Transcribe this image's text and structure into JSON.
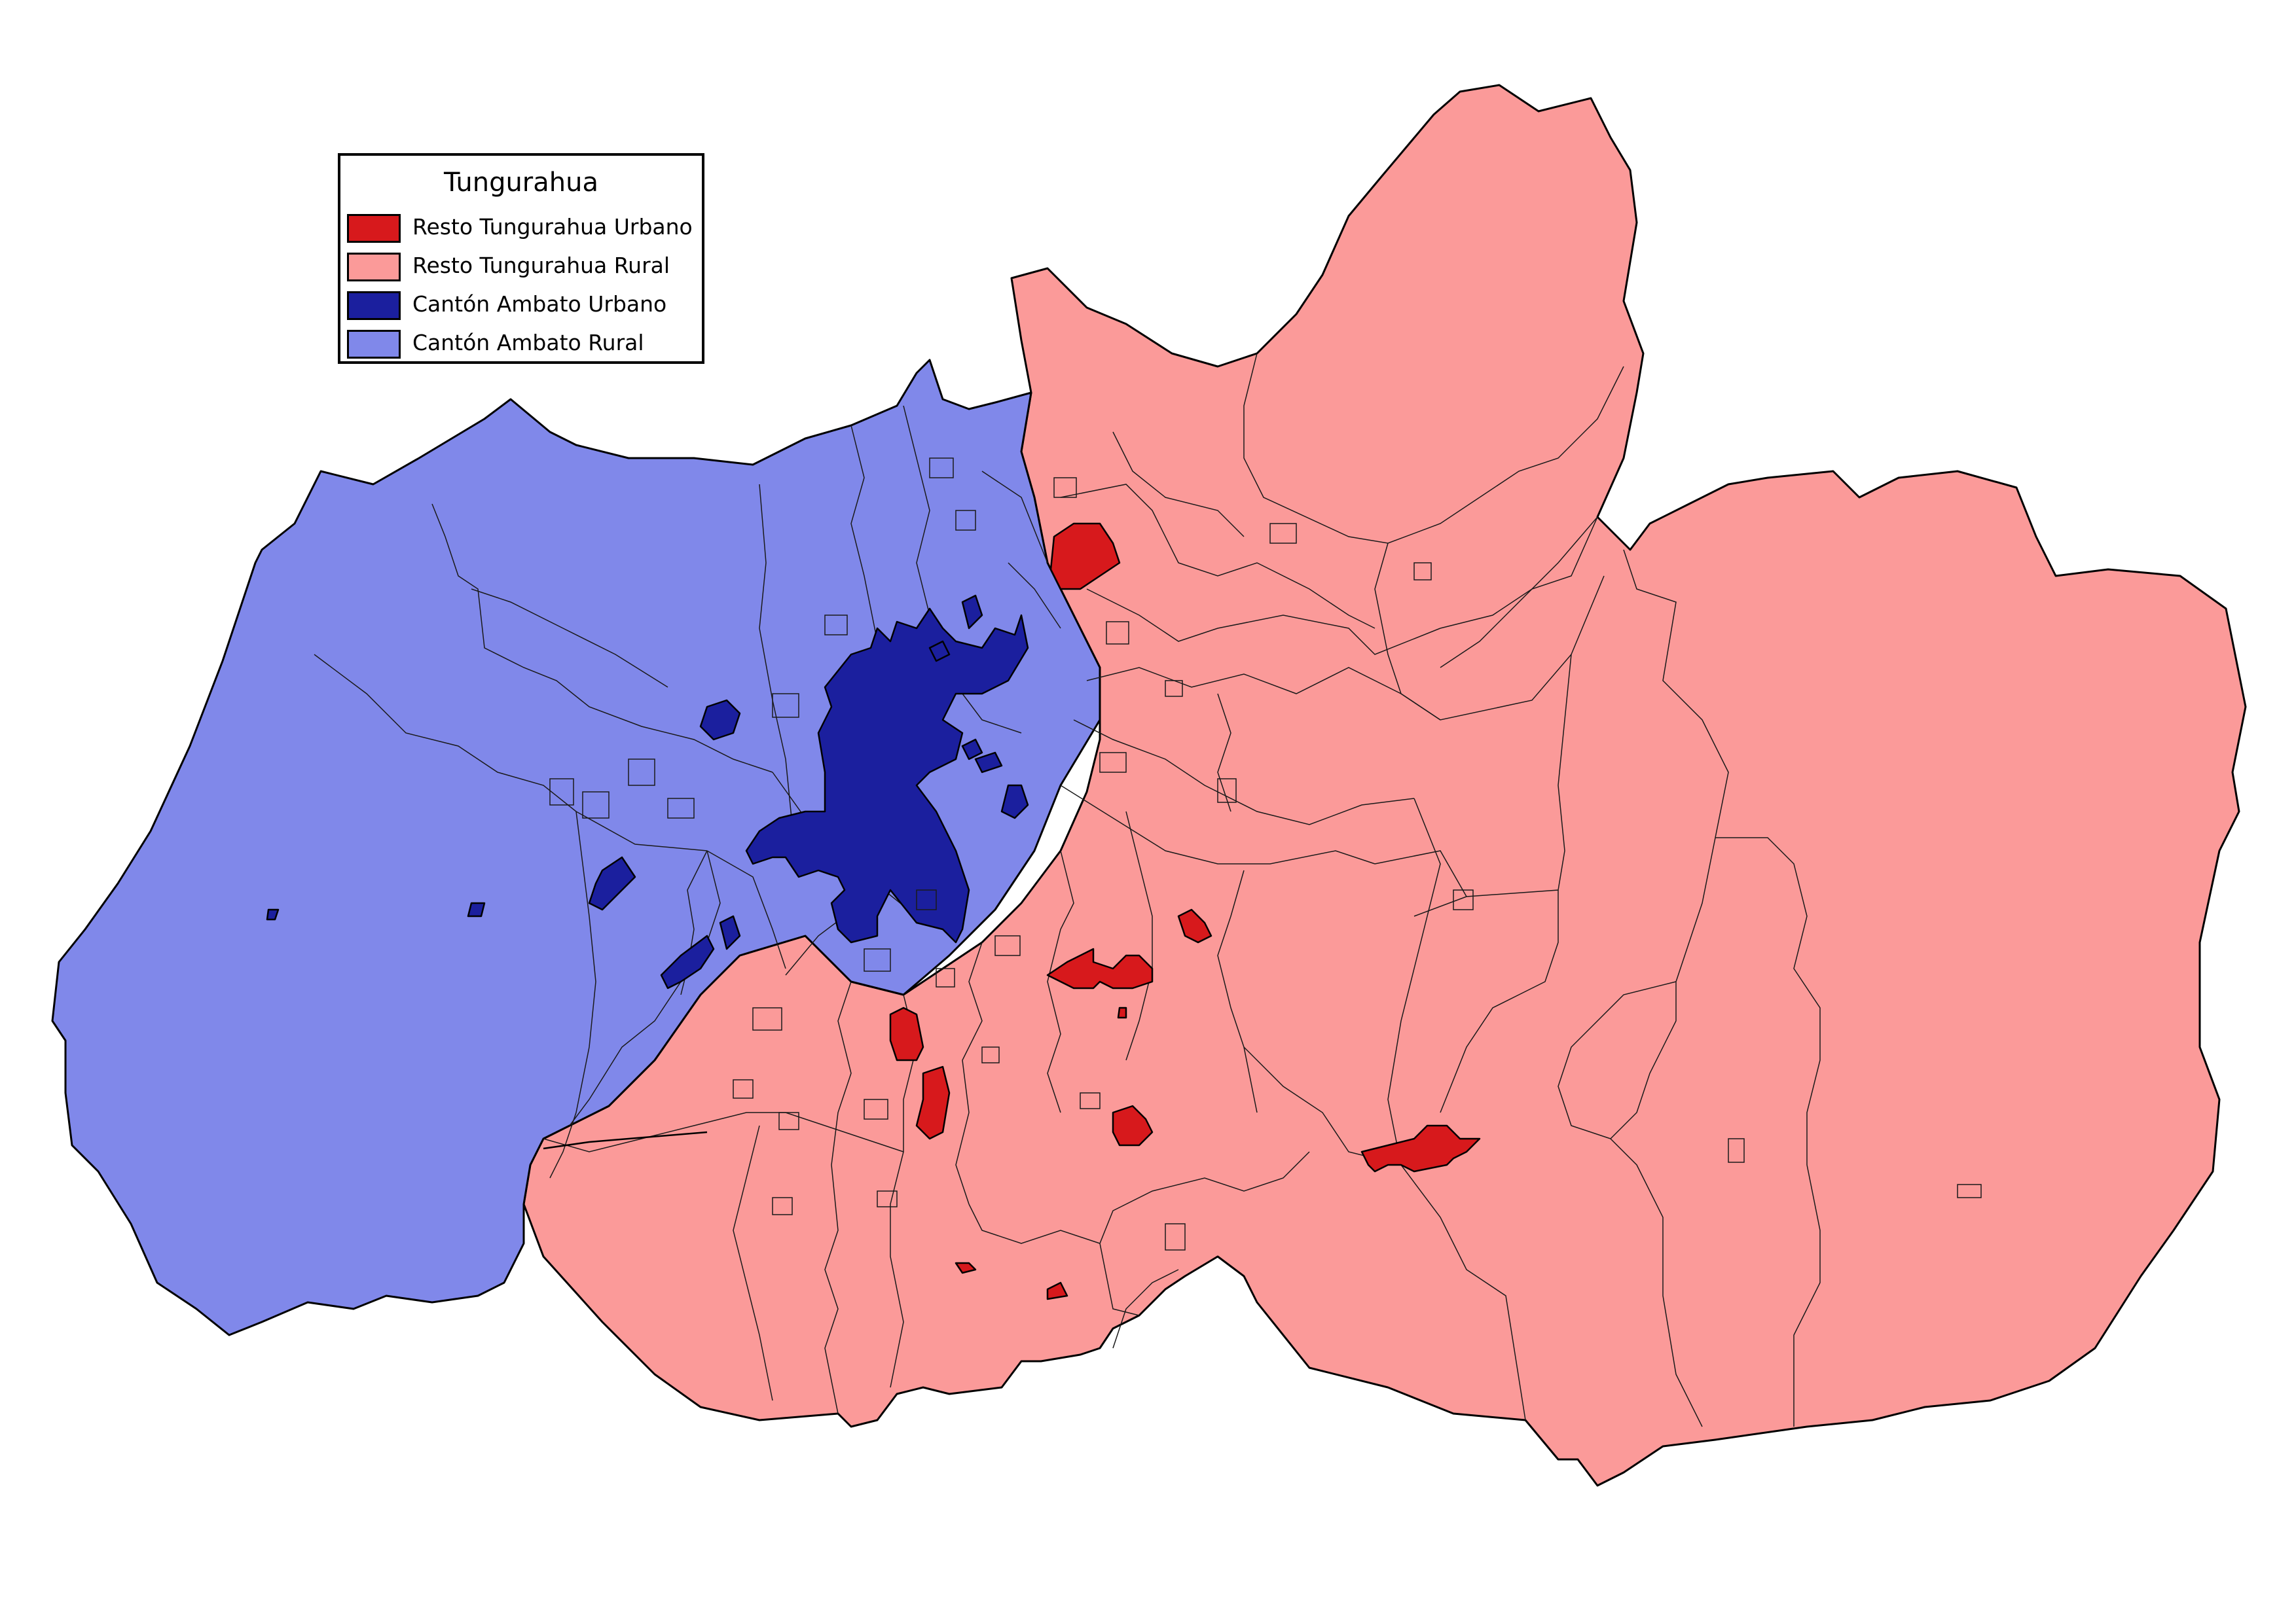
{
  "map": {
    "legend": {
      "title": "Tungurahua",
      "items": [
        {
          "label": "Resto Tungurahua Urbano",
          "color": "#d7191c"
        },
        {
          "label": "Resto Tungurahua Rural",
          "color": "#fb9a99"
        },
        {
          "label": "Cantón Ambato Urbano",
          "color": "#1b1f9e"
        },
        {
          "label": "Cantón Ambato Rural",
          "color": "#8088ea"
        }
      ]
    }
  }
}
